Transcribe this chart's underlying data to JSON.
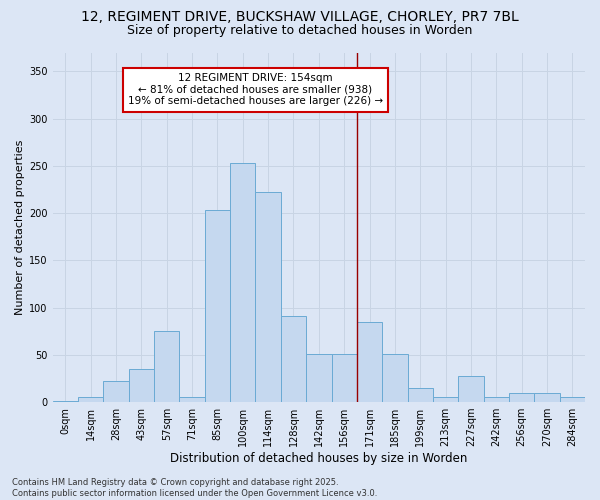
{
  "title": "12, REGIMENT DRIVE, BUCKSHAW VILLAGE, CHORLEY, PR7 7BL",
  "subtitle": "Size of property relative to detached houses in Worden",
  "xlabel": "Distribution of detached houses by size in Worden",
  "ylabel": "Number of detached properties",
  "bar_labels": [
    "0sqm",
    "14sqm",
    "28sqm",
    "43sqm",
    "57sqm",
    "71sqm",
    "85sqm",
    "100sqm",
    "114sqm",
    "128sqm",
    "142sqm",
    "156sqm",
    "171sqm",
    "185sqm",
    "199sqm",
    "213sqm",
    "227sqm",
    "242sqm",
    "256sqm",
    "270sqm",
    "284sqm"
  ],
  "bar_values": [
    1,
    5,
    22,
    35,
    75,
    5,
    203,
    253,
    222,
    91,
    51,
    51,
    85,
    51,
    15,
    5,
    28,
    5,
    10,
    10,
    5
  ],
  "bar_color": "#c5d8ef",
  "bar_edge_color": "#6aaad4",
  "grid_color": "#c8d4e4",
  "background_color": "#dce6f5",
  "vline_x": 11.5,
  "vline_color": "#990000",
  "annotation_text": "12 REGIMENT DRIVE: 154sqm\n← 81% of detached houses are smaller (938)\n19% of semi-detached houses are larger (226) →",
  "annotation_box_edge": "#cc0000",
  "annotation_box_face": "#ffffff",
  "ylim": [
    0,
    370
  ],
  "yticks": [
    0,
    50,
    100,
    150,
    200,
    250,
    300,
    350
  ],
  "footnote": "Contains HM Land Registry data © Crown copyright and database right 2025.\nContains public sector information licensed under the Open Government Licence v3.0.",
  "title_fontsize": 10,
  "subtitle_fontsize": 9,
  "xlabel_fontsize": 8.5,
  "ylabel_fontsize": 8,
  "tick_fontsize": 7,
  "annotation_fontsize": 7.5,
  "footnote_fontsize": 6
}
